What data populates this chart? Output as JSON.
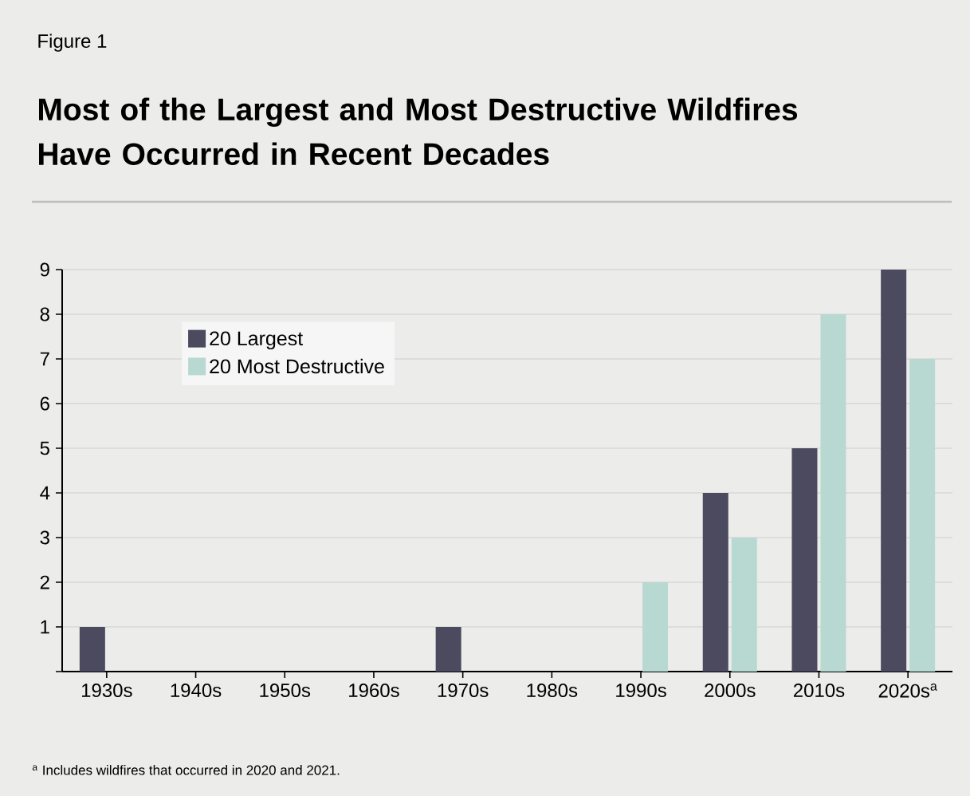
{
  "chart_data": {
    "type": "bar",
    "title": "Most of the Largest and Most Destructive Wildfires Have Occurred in Recent Decades",
    "annotations": [
      "Figure 1",
      "$^{a}$ Includes wildfires that occurred in 2020 and 2021."
    ],
    "categories": [
      "1930s",
      "1940s",
      "1950s",
      "1960s",
      "1970s",
      "1980s",
      "1990s",
      "2000s",
      "2010s",
      "2020s$^{a}$"
    ],
    "series": [
      {
        "name": "20 Largest",
        "color": "#4b4a5f",
        "values": [
          1,
          0,
          0,
          0,
          1,
          0,
          0,
          4,
          5,
          9
        ]
      },
      {
        "name": "20 Most Destructive",
        "color": "#b8d9d1",
        "values": [
          0,
          0,
          0,
          0,
          0,
          0,
          2,
          3,
          8,
          7
        ]
      }
    ],
    "ylim": [
      0,
      9
    ],
    "yticks": [
      {
        "value": 0,
        "label": null
      },
      1,
      2,
      3,
      4,
      5,
      6,
      7,
      8,
      9
    ],
    "grid": "y",
    "legend": "top left"
  }
}
